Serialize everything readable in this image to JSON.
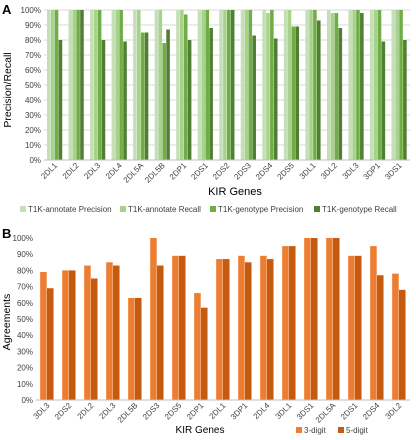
{
  "chart_data": [
    {
      "panel": "A",
      "type": "bar",
      "xlabel": "KIR Genes",
      "ylabel": "Precision/Recall",
      "ylim": [
        0,
        100
      ],
      "y_ticks": [
        0,
        10,
        20,
        30,
        40,
        50,
        60,
        70,
        80,
        90,
        100
      ],
      "y_tick_format": "percent",
      "grid": true,
      "legend_position": "bottom",
      "categories": [
        "2DL1",
        "2DL2",
        "2DL3",
        "2DL4",
        "2DL5A",
        "2DL5B",
        "2DP1",
        "2DS1",
        "2DS2",
        "2DS3",
        "2DS4",
        "2DS5",
        "3DL1",
        "3DL2",
        "3DL3",
        "3DP1",
        "3DS1"
      ],
      "series": [
        {
          "name": "T1K-annotate Precision",
          "color": "#c5dfb6",
          "values": [
            100,
            100,
            100,
            100,
            100,
            100,
            100,
            100,
            100,
            100,
            100,
            100,
            100,
            100,
            100,
            100,
            100
          ]
        },
        {
          "name": "T1K-annotate Recall",
          "color": "#a9d18e",
          "values": [
            100,
            100,
            100,
            100,
            100,
            100,
            100,
            100,
            100,
            100,
            98,
            100,
            100,
            98,
            100,
            100,
            100
          ]
        },
        {
          "name": "T1K-genotype Precision",
          "color": "#70ad47",
          "values": [
            100,
            100,
            100,
            100,
            85,
            78,
            97,
            100,
            100,
            100,
            100,
            89,
            100,
            98,
            100,
            100,
            100
          ]
        },
        {
          "name": "T1K-genotype Recall",
          "color": "#507e32",
          "values": [
            80,
            100,
            80,
            79,
            85,
            87,
            80,
            88,
            100,
            83,
            81,
            89,
            93,
            88,
            98,
            79,
            80
          ]
        }
      ]
    },
    {
      "panel": "B",
      "type": "bar",
      "xlabel": "KIR Genes",
      "ylabel": "Agreements",
      "ylim": [
        0,
        100
      ],
      "y_ticks": [
        0,
        10,
        20,
        30,
        40,
        50,
        60,
        70,
        80,
        90,
        100
      ],
      "y_tick_format": "percent",
      "grid": false,
      "legend_position": "bottom-right",
      "categories": [
        "3DL3",
        "2DS2",
        "2DL2",
        "2DL3",
        "2DL5B",
        "2DS3",
        "2DS5",
        "2DP1",
        "2DL1",
        "3DP1",
        "2DL4",
        "3DL1",
        "3DS1",
        "2DL5A",
        "2DS1",
        "2DS4",
        "3DL2"
      ],
      "series": [
        {
          "name": "3-digit",
          "color": "#ed7d31",
          "values": [
            79,
            80,
            83,
            85,
            63,
            100,
            89,
            66,
            87,
            89,
            89,
            95,
            100,
            100,
            89,
            95,
            78
          ]
        },
        {
          "name": "5-digit",
          "color": "#c55a11",
          "values": [
            69,
            80,
            75,
            83,
            63,
            83,
            89,
            57,
            87,
            85,
            87,
            95,
            100,
            100,
            89,
            77,
            68
          ]
        }
      ]
    }
  ],
  "panel_labels": [
    "A",
    "B"
  ]
}
